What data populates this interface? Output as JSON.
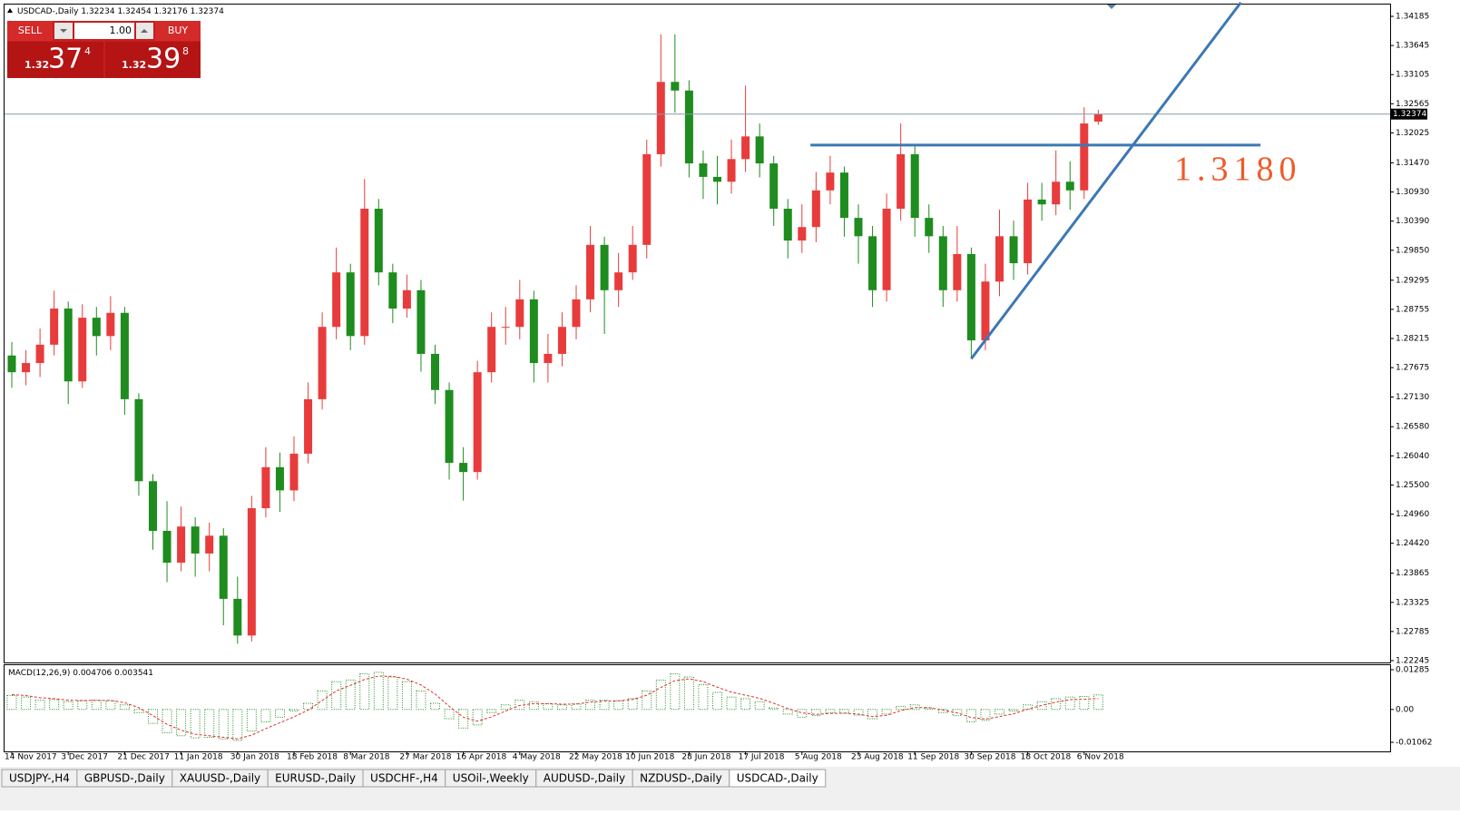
{
  "header": {
    "symbol": "USDCAD-,Daily"
  },
  "trade_panel": {
    "sell": "SELL",
    "buy": "BUY",
    "lot": "1.00",
    "sell_price": {
      "big": "1.32",
      "pips": "37",
      "frac": "4"
    },
    "buy_price": {
      "big": "1.32",
      "pips": "39",
      "frac": "8"
    }
  },
  "tabs": [
    "USDJPY-,H4",
    "GBPUSD-,Daily",
    "XAUUSD-,Daily",
    "EURUSD-,Daily",
    "USDCHF-,H4",
    "USOil-,Weekly",
    "AUDUSD-,Daily",
    "NZDUSD-,Daily",
    "USDCAD-,Daily"
  ],
  "active_tab": 8,
  "chart_data": [
    {
      "type": "candlestick",
      "categories": [
        "14 Nov 2017",
        null,
        null,
        null,
        "3 Dec 2017",
        null,
        null,
        null,
        "21 Dec 2017",
        null,
        null,
        null,
        "11 Jan 2018",
        null,
        null,
        null,
        "30 Jan 2018",
        null,
        null,
        null,
        "18 Feb 2018",
        null,
        null,
        null,
        "8 Mar 2018",
        null,
        null,
        null,
        "27 Mar 2018",
        null,
        null,
        null,
        "16 Apr 2018",
        null,
        null,
        null,
        "4 May 2018",
        null,
        null,
        null,
        "22 May 2018",
        null,
        null,
        null,
        "10 Jun 2018",
        null,
        null,
        null,
        "28 Jun 2018",
        null,
        null,
        null,
        "17 Jul 2018",
        null,
        null,
        null,
        "5 Aug 2018",
        null,
        null,
        null,
        "23 Aug 2018",
        null,
        null,
        null,
        "11 Sep 2018",
        null,
        null,
        null,
        "30 Sep 2018",
        null,
        null,
        null,
        "18 Oct 2018",
        null,
        null,
        null,
        "6 Nov 2018",
        null
      ],
      "open": [
        1.279,
        1.2759,
        1.2776,
        1.281,
        1.2877,
        1.2742,
        1.286,
        1.2826,
        1.2869,
        1.2709,
        1.2557,
        1.2465,
        1.2406,
        1.2473,
        1.2423,
        1.2456,
        1.2339,
        1.2271,
        1.2507,
        1.2583,
        1.254,
        1.2608,
        1.2709,
        1.2843,
        1.2944,
        1.2826,
        1.3062,
        1.2944,
        1.2877,
        1.2911,
        1.2793,
        1.2726,
        1.2591,
        1.2574,
        1.2759,
        1.2843,
        1.2843,
        1.2894,
        1.2776,
        1.2793,
        1.2843,
        1.2894,
        1.2995,
        1.2911,
        1.2944,
        1.2995,
        1.3163,
        1.3297,
        1.3281,
        1.3146,
        1.3121,
        1.3112,
        1.3154,
        1.3196,
        1.3146,
        1.3062,
        1.3003,
        1.3028,
        1.3096,
        1.3129,
        1.3045,
        1.3011,
        1.2911,
        1.3062,
        1.3163,
        1.3045,
        1.3011,
        1.2911,
        1.2978,
        1.2818,
        1.2927,
        1.3011,
        1.2961,
        1.3079,
        1.307,
        1.3112,
        1.3096,
        1.32234
      ],
      "high": [
        1.2815,
        1.28,
        1.284,
        1.291,
        1.289,
        1.2885,
        1.288,
        1.29,
        1.288,
        1.272,
        1.257,
        1.252,
        1.251,
        1.249,
        1.248,
        1.247,
        1.238,
        1.253,
        1.262,
        1.261,
        1.264,
        1.274,
        1.287,
        1.299,
        1.296,
        1.3117,
        1.308,
        1.296,
        1.294,
        1.293,
        1.281,
        1.274,
        1.262,
        1.278,
        1.287,
        1.288,
        1.293,
        1.291,
        1.283,
        1.287,
        1.292,
        1.303,
        1.301,
        1.298,
        1.303,
        1.319,
        1.3385,
        1.3385,
        1.33,
        1.317,
        1.316,
        1.319,
        1.329,
        1.322,
        1.316,
        1.308,
        1.307,
        1.313,
        1.316,
        1.314,
        1.307,
        1.303,
        1.309,
        1.322,
        1.318,
        1.307,
        1.303,
        1.303,
        1.299,
        1.296,
        1.306,
        1.304,
        1.311,
        1.311,
        1.317,
        1.315,
        1.325,
        1.32454
      ],
      "low": [
        1.273,
        1.2735,
        1.275,
        1.279,
        1.27,
        1.273,
        1.279,
        1.28,
        1.268,
        1.253,
        1.243,
        1.237,
        1.239,
        1.238,
        1.239,
        1.229,
        1.2256,
        1.226,
        1.249,
        1.25,
        1.252,
        1.259,
        1.269,
        1.282,
        1.28,
        1.281,
        1.292,
        1.285,
        1.286,
        1.276,
        1.27,
        1.256,
        1.2521,
        1.256,
        1.274,
        1.281,
        1.282,
        1.274,
        1.274,
        1.277,
        1.282,
        1.287,
        1.283,
        1.288,
        1.293,
        1.297,
        1.314,
        1.324,
        1.312,
        1.308,
        1.307,
        1.309,
        1.313,
        1.312,
        1.303,
        1.297,
        1.298,
        1.3,
        1.307,
        1.301,
        1.296,
        1.288,
        1.289,
        1.304,
        1.301,
        1.298,
        1.288,
        1.289,
        1.2784,
        1.28,
        1.29,
        1.293,
        1.294,
        1.304,
        1.305,
        1.306,
        1.308,
        1.32176
      ],
      "close": [
        1.2759,
        1.2776,
        1.281,
        1.2877,
        1.2742,
        1.286,
        1.2826,
        1.2869,
        1.2709,
        1.2557,
        1.2465,
        1.2406,
        1.2473,
        1.2423,
        1.2456,
        1.2339,
        1.2271,
        1.2507,
        1.2583,
        1.254,
        1.2608,
        1.2709,
        1.2843,
        1.2944,
        1.2826,
        1.3062,
        1.2944,
        1.2877,
        1.2911,
        1.2793,
        1.2726,
        1.2591,
        1.2574,
        1.2759,
        1.2843,
        1.2843,
        1.2894,
        1.2776,
        1.2793,
        1.2843,
        1.2894,
        1.2995,
        1.2911,
        1.2944,
        1.2995,
        1.3163,
        1.3297,
        1.3281,
        1.3146,
        1.3121,
        1.3112,
        1.3154,
        1.3196,
        1.3146,
        1.3062,
        1.3003,
        1.3028,
        1.3096,
        1.3129,
        1.3045,
        1.3011,
        1.2911,
        1.3062,
        1.3163,
        1.3045,
        1.3011,
        1.2911,
        1.2978,
        1.2818,
        1.2927,
        1.3011,
        1.2961,
        1.3079,
        1.307,
        1.3112,
        1.3096,
        1.322,
        1.32374
      ],
      "up_color": "#e83c3c",
      "down_color": "#1e8c1e",
      "ylim": [
        1.22211,
        1.34404
      ],
      "yticks": [
        1.34185,
        1.33645,
        1.33105,
        1.32565,
        1.32025,
        {
          "value": 1.3147,
          "label": "1.31470"
        },
        {
          "value": 1.3093,
          "label": "1.30930"
        },
        {
          "value": 1.3039,
          "label": "1.30390"
        },
        {
          "value": 1.2985,
          "label": "1.29850"
        },
        1.29295,
        1.28755,
        1.28215,
        1.27675,
        {
          "value": 1.2713,
          "label": "1.27130"
        },
        {
          "value": 1.2658,
          "label": "1.26580"
        },
        {
          "value": 1.2604,
          "label": "1.26040"
        },
        {
          "value": 1.255,
          "label": "1.25500"
        },
        {
          "value": 1.2496,
          "label": "1.24960"
        },
        {
          "value": 1.2442,
          "label": "1.24420"
        },
        1.23865,
        1.23325,
        1.22785,
        1.22245
      ],
      "lines": [
        {
          "from": [
            68,
            1.2784
          ],
          "to": [
            87.1,
            1.3444
          ],
          "color": "#3c78b4"
        },
        {
          "from": [
            56.6,
            1.318
          ],
          "to": [
            88.5,
            1.318
          ],
          "color": "#3c78b4"
        }
      ],
      "annotation": {
        "text": "1.3180",
        "color": "#f05a28"
      }
    },
    {
      "type": "macd",
      "title": "MACD(12,26,9)",
      "series": [
        {
          "name": "MACD",
          "color": "#1e8c1e",
          "values": [
            0.0045,
            0.004,
            0.003,
            0.0032,
            0.0025,
            0.0028,
            0.003,
            0.0028,
            0.0015,
            -0.001,
            -0.0045,
            -0.0075,
            -0.0085,
            -0.0092,
            -0.009,
            -0.0095,
            -0.01,
            -0.007,
            -0.004,
            -0.0025,
            -0.0005,
            0.002,
            0.006,
            0.009,
            0.0095,
            0.0115,
            0.012,
            0.0105,
            0.009,
            0.006,
            0.002,
            -0.003,
            -0.006,
            -0.005,
            -0.001,
            0.0015,
            0.003,
            0.0025,
            0.0018,
            0.0015,
            0.0018,
            0.003,
            0.003,
            0.0028,
            0.0035,
            0.006,
            0.0095,
            0.0115,
            0.0105,
            0.008,
            0.0055,
            0.004,
            0.0035,
            0.0025,
            0.0005,
            -0.0015,
            -0.0025,
            -0.002,
            -0.001,
            -0.0012,
            -0.0018,
            -0.003,
            -0.0015,
            0.001,
            0.0015,
            0.0005,
            -0.001,
            -0.002,
            -0.004,
            -0.0035,
            -0.0015,
            -0.0005,
            0.0015,
            0.0025,
            0.0035,
            0.004,
            0.0042,
            0.004706
          ]
        },
        {
          "name": "Signal",
          "color": "#e03030",
          "values": [
            0.0048,
            0.0045,
            0.0038,
            0.0035,
            0.003,
            0.0029,
            0.0029,
            0.0029,
            0.0022,
            0.0006,
            -0.002,
            -0.0048,
            -0.0067,
            -0.008,
            -0.0085,
            -0.009,
            -0.0095,
            -0.0083,
            -0.0062,
            -0.0043,
            -0.0024,
            -0.0002,
            0.0029,
            0.006,
            0.0078,
            0.0097,
            0.0108,
            0.0107,
            0.0098,
            0.0079,
            0.005,
            0.001,
            -0.0025,
            -0.0038,
            -0.0024,
            -0.0005,
            0.0013,
            0.0019,
            0.0019,
            0.0017,
            0.0017,
            0.0024,
            0.0027,
            0.0028,
            0.0032,
            0.0046,
            0.0071,
            0.0093,
            0.0099,
            0.009,
            0.0072,
            0.0056,
            0.0046,
            0.0036,
            0.002,
            0.0003,
            -0.0011,
            -0.0016,
            -0.0013,
            -0.0012,
            -0.0015,
            -0.0023,
            -0.0019,
            -0.0004,
            0.0006,
            0.0006,
            -0.0002,
            -0.0011,
            -0.0026,
            -0.0031,
            -0.0023,
            -0.0014,
            0.0001,
            0.0013,
            0.0024,
            0.0032,
            0.0033,
            0.003541
          ]
        }
      ],
      "ylim": [
        -0.01355,
        0.01461
      ],
      "yticks": [
        0.01285,
        {
          "value": 0,
          "label": "0.00"
        },
        -0.01062
      ]
    }
  ]
}
